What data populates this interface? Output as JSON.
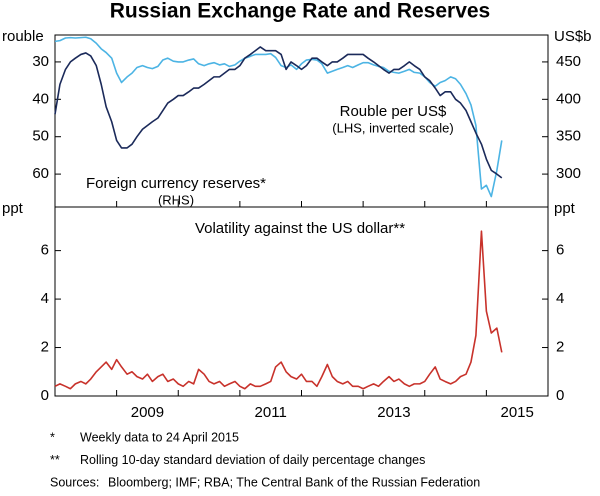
{
  "chart_data": [
    {
      "type": "line",
      "title": "Russian Exchange Rate and Reserves",
      "ylabel": "rouble",
      "y2label": "US$b",
      "xlim": [
        2008,
        2016
      ],
      "xticks": [
        {
          "value": 2009.5,
          "label": "2009"
        },
        {
          "value": 2011.5,
          "label": "2011"
        },
        {
          "value": 2013.5,
          "label": "2013"
        },
        {
          "value": 2015.5,
          "label": "2015"
        }
      ],
      "xtick_marks": [
        2008,
        2009,
        2010,
        2011,
        2012,
        2013,
        2014,
        2015,
        2016
      ],
      "ylim": [
        22.8,
        68.8
      ],
      "y_inverted": true,
      "yticks": [
        30,
        40,
        50,
        60
      ],
      "y2lim": [
        256,
        486
      ],
      "y2ticks": [
        300,
        350,
        400,
        450
      ],
      "grid": false,
      "x": [
        2008.0,
        2008.08,
        2008.17,
        2008.25,
        2008.33,
        2008.42,
        2008.5,
        2008.58,
        2008.67,
        2008.75,
        2008.83,
        2008.92,
        2009.0,
        2009.08,
        2009.17,
        2009.25,
        2009.33,
        2009.42,
        2009.5,
        2009.58,
        2009.67,
        2009.75,
        2009.83,
        2009.92,
        2010.0,
        2010.08,
        2010.17,
        2010.25,
        2010.33,
        2010.42,
        2010.5,
        2010.58,
        2010.67,
        2010.75,
        2010.83,
        2010.92,
        2011.0,
        2011.08,
        2011.17,
        2011.25,
        2011.33,
        2011.42,
        2011.5,
        2011.58,
        2011.67,
        2011.75,
        2011.83,
        2011.92,
        2012.0,
        2012.08,
        2012.17,
        2012.25,
        2012.33,
        2012.42,
        2012.5,
        2012.58,
        2012.67,
        2012.75,
        2012.83,
        2012.92,
        2013.0,
        2013.08,
        2013.17,
        2013.25,
        2013.33,
        2013.42,
        2013.5,
        2013.58,
        2013.67,
        2013.75,
        2013.83,
        2013.92,
        2014.0,
        2014.08,
        2014.17,
        2014.25,
        2014.33,
        2014.42,
        2014.5,
        2014.58,
        2014.67,
        2014.75,
        2014.83,
        2014.92,
        2015.0,
        2015.08,
        2015.17,
        2015.25
      ],
      "series": [
        {
          "name": "Rouble per US$",
          "subname": "(LHS, inverted scale)",
          "color": "#4cb4e4",
          "axis": "y",
          "values": [
            24.5,
            24.3,
            23.6,
            23.5,
            23.6,
            23.5,
            23.4,
            23.8,
            25.0,
            26.5,
            27.5,
            29.0,
            33.0,
            35.5,
            34.0,
            33.0,
            31.5,
            31.0,
            31.5,
            31.8,
            31.2,
            29.5,
            29.0,
            29.8,
            30.0,
            30.0,
            29.5,
            29.2,
            30.5,
            31.0,
            30.5,
            30.2,
            30.8,
            30.5,
            31.2,
            30.8,
            29.8,
            29.0,
            28.5,
            28.0,
            28.0,
            28.0,
            27.8,
            28.8,
            31.0,
            31.5,
            30.8,
            32.0,
            30.5,
            29.5,
            29.3,
            29.5,
            30.5,
            33.0,
            32.5,
            32.0,
            31.5,
            31.0,
            31.5,
            30.8,
            30.2,
            30.2,
            30.8,
            31.2,
            31.5,
            32.5,
            32.8,
            33.0,
            32.5,
            32.0,
            32.8,
            33.0,
            34.0,
            35.5,
            36.5,
            35.5,
            35.0,
            34.0,
            34.5,
            36.0,
            38.5,
            41.5,
            47.0,
            64.0,
            63.0,
            66.0,
            59.0,
            51.0
          ]
        },
        {
          "name": "Foreign currency reserves*",
          "subname": "(RHS)",
          "color": "#1b2a5a",
          "axis": "y2",
          "values": [
            380,
            420,
            440,
            450,
            455,
            460,
            462,
            458,
            445,
            420,
            390,
            370,
            345,
            335,
            335,
            340,
            350,
            360,
            365,
            370,
            375,
            385,
            395,
            400,
            405,
            405,
            410,
            415,
            415,
            420,
            425,
            430,
            430,
            435,
            440,
            440,
            445,
            455,
            460,
            465,
            470,
            465,
            465,
            465,
            460,
            440,
            450,
            445,
            440,
            445,
            455,
            455,
            450,
            445,
            450,
            450,
            455,
            460,
            460,
            460,
            460,
            455,
            450,
            445,
            440,
            435,
            440,
            440,
            445,
            450,
            445,
            440,
            430,
            425,
            415,
            405,
            410,
            410,
            400,
            395,
            385,
            370,
            355,
            340,
            320,
            305,
            300,
            295
          ]
        }
      ]
    },
    {
      "type": "line",
      "title": "Volatility against the US dollar**",
      "ylabel": "ppt",
      "y2label": "ppt",
      "xlim": [
        2008,
        2016
      ],
      "xticks": [
        {
          "value": 2009.5,
          "label": "2009"
        },
        {
          "value": 2011.5,
          "label": "2011"
        },
        {
          "value": 2013.5,
          "label": "2013"
        },
        {
          "value": 2015.5,
          "label": "2015"
        }
      ],
      "xtick_marks": [
        2008,
        2009,
        2010,
        2011,
        2012,
        2013,
        2014,
        2015,
        2016
      ],
      "ylim": [
        0,
        7.8
      ],
      "yticks": [
        0,
        2,
        4,
        6
      ],
      "y2lim": [
        0,
        7.8
      ],
      "y2ticks": [
        0,
        2,
        4,
        6
      ],
      "grid": false,
      "color": "#c8322b",
      "x": [
        2008.0,
        2008.08,
        2008.17,
        2008.25,
        2008.33,
        2008.42,
        2008.5,
        2008.58,
        2008.67,
        2008.75,
        2008.83,
        2008.92,
        2009.0,
        2009.08,
        2009.17,
        2009.25,
        2009.33,
        2009.42,
        2009.5,
        2009.58,
        2009.67,
        2009.75,
        2009.83,
        2009.92,
        2010.0,
        2010.08,
        2010.17,
        2010.25,
        2010.33,
        2010.42,
        2010.5,
        2010.58,
        2010.67,
        2010.75,
        2010.83,
        2010.92,
        2011.0,
        2011.08,
        2011.17,
        2011.25,
        2011.33,
        2011.42,
        2011.5,
        2011.58,
        2011.67,
        2011.75,
        2011.83,
        2011.92,
        2012.0,
        2012.08,
        2012.17,
        2012.25,
        2012.33,
        2012.42,
        2012.5,
        2012.58,
        2012.67,
        2012.75,
        2012.83,
        2012.92,
        2013.0,
        2013.08,
        2013.17,
        2013.25,
        2013.33,
        2013.42,
        2013.5,
        2013.58,
        2013.67,
        2013.75,
        2013.83,
        2013.92,
        2014.0,
        2014.08,
        2014.17,
        2014.25,
        2014.33,
        2014.42,
        2014.5,
        2014.58,
        2014.67,
        2014.75,
        2014.83,
        2014.92,
        2015.0,
        2015.08,
        2015.17,
        2015.25
      ],
      "values": [
        0.4,
        0.5,
        0.4,
        0.3,
        0.5,
        0.6,
        0.5,
        0.7,
        1.0,
        1.2,
        1.4,
        1.1,
        1.5,
        1.2,
        0.9,
        1.0,
        0.8,
        0.7,
        0.9,
        0.6,
        0.8,
        0.9,
        0.6,
        0.7,
        0.5,
        0.4,
        0.6,
        0.5,
        1.1,
        0.9,
        0.6,
        0.5,
        0.6,
        0.4,
        0.5,
        0.6,
        0.4,
        0.3,
        0.5,
        0.4,
        0.4,
        0.5,
        0.6,
        1.2,
        1.4,
        1.0,
        0.8,
        0.7,
        0.9,
        0.6,
        0.6,
        0.4,
        0.8,
        1.3,
        0.8,
        0.6,
        0.5,
        0.6,
        0.4,
        0.4,
        0.3,
        0.4,
        0.5,
        0.4,
        0.6,
        0.8,
        0.6,
        0.7,
        0.5,
        0.4,
        0.5,
        0.5,
        0.6,
        0.9,
        1.2,
        0.7,
        0.6,
        0.5,
        0.6,
        0.8,
        0.9,
        1.4,
        2.5,
        6.8,
        3.5,
        2.6,
        2.8,
        1.8
      ]
    }
  ],
  "notes": [
    {
      "marker": "*",
      "text": "Weekly data to 24 April 2015"
    },
    {
      "marker": "**",
      "text": "Rolling 10-day standard deviation of daily percentage changes"
    },
    {
      "marker": "Sources:",
      "text": "Bloomberg; IMF; RBA; The Central Bank of the Russian Federation"
    }
  ]
}
